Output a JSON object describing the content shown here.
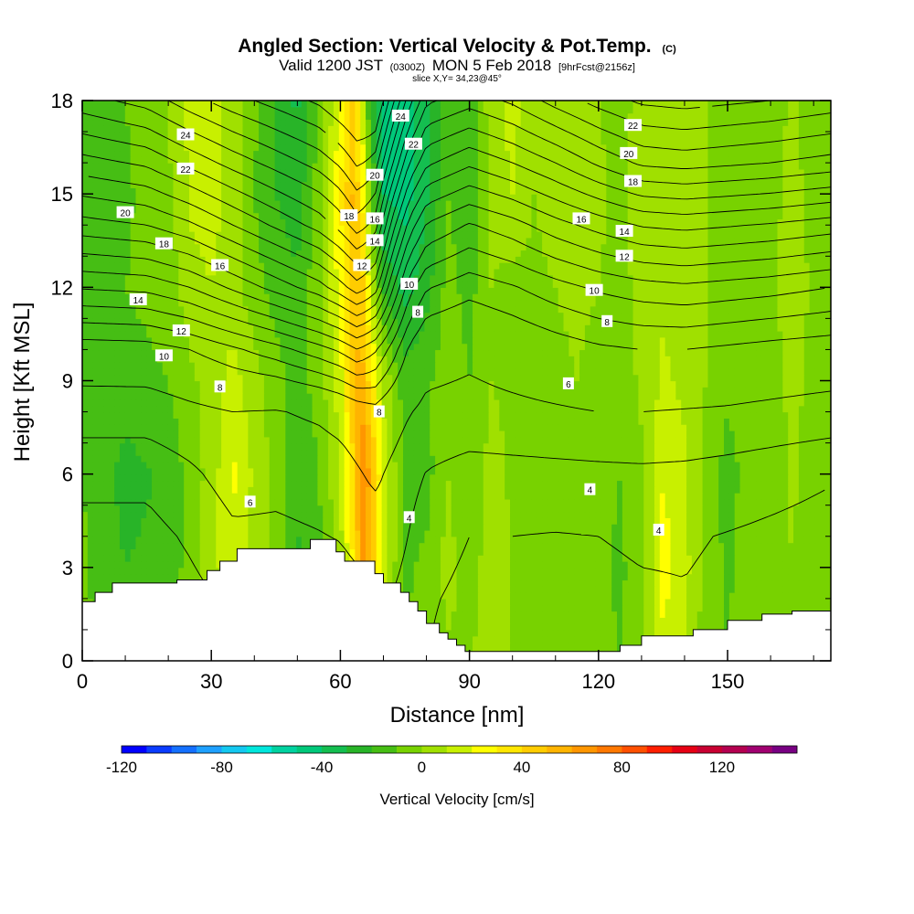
{
  "chart_data": {
    "type": "heatmap",
    "title": "Angled Section: Vertical Velocity & Pot.Temp.",
    "title_unit": "(C)",
    "subtitle_valid": "Valid 1200 JST",
    "subtitle_utc": "(0300Z)",
    "subtitle_date": "MON 5 Feb 2018",
    "subtitle_fcst": "[9hrFcst@2156z]",
    "slice_label": "slice X,Y= 34,23@45°",
    "xlabel": "Distance [nm]",
    "ylabel": "Height [Kft MSL]",
    "xlim": [
      0,
      174
    ],
    "ylim": [
      0,
      18
    ],
    "x_ticks": [
      "0",
      "30",
      "60",
      "90",
      "120",
      "150"
    ],
    "x_tick_values": [
      0,
      30,
      60,
      90,
      120,
      150
    ],
    "y_ticks": [
      "0",
      "3",
      "6",
      "9",
      "12",
      "15",
      "18"
    ],
    "y_tick_values": [
      0,
      3,
      6,
      9,
      12,
      15,
      18
    ],
    "colorbar": {
      "label": "Vertical Velocity [cm/s]",
      "min": -120,
      "max": 150,
      "step": 10,
      "tick_labels": [
        "-120",
        "-80",
        "-40",
        "0",
        "40",
        "80",
        "120"
      ],
      "tick_values": [
        -120,
        -80,
        -40,
        0,
        40,
        80,
        120
      ],
      "colors": [
        "#0000ff",
        "#0a3cff",
        "#1470ff",
        "#1ea0ff",
        "#14c8f0",
        "#00e6dc",
        "#00d2a0",
        "#00c87a",
        "#14be50",
        "#28b428",
        "#46be14",
        "#78d200",
        "#a0e000",
        "#c8f000",
        "#ffff00",
        "#ffe600",
        "#ffcc00",
        "#ffb400",
        "#ff9600",
        "#ff7800",
        "#ff5000",
        "#ff1e00",
        "#e60014",
        "#c80032",
        "#b40050",
        "#a00070",
        "#780082"
      ]
    },
    "velocity_field": {
      "x": [
        0,
        10,
        20,
        25,
        30,
        35,
        40,
        45,
        50,
        55,
        60,
        63,
        65,
        67,
        70,
        75,
        80,
        85,
        90,
        95,
        100,
        105,
        110,
        115,
        120,
        125,
        130,
        135,
        140,
        145,
        150,
        155,
        160,
        165,
        170,
        174
      ],
      "y": [
        0,
        3,
        6,
        9,
        12,
        15,
        18
      ],
      "values": [
        [
          -8,
          -16,
          -14,
          -6,
          4,
          12,
          4,
          -4,
          -10,
          -6,
          4,
          18,
          36,
          22,
          8,
          -8,
          -6,
          -2,
          0,
          4,
          0,
          -4,
          -4,
          0,
          -6,
          -10,
          -4,
          18,
          10,
          -6,
          -10,
          -4,
          -6,
          -2,
          -4,
          -6
        ],
        [
          -8,
          -20,
          -16,
          -6,
          6,
          18,
          6,
          -4,
          -22,
          -14,
          6,
          30,
          62,
          48,
          14,
          -12,
          -8,
          4,
          -6,
          6,
          0,
          -4,
          -2,
          0,
          -8,
          -12,
          -4,
          24,
          14,
          -4,
          -12,
          -4,
          -8,
          0,
          -6,
          -8
        ],
        [
          -10,
          -24,
          -18,
          -6,
          4,
          22,
          8,
          -4,
          -18,
          -10,
          10,
          40,
          72,
          58,
          16,
          -12,
          -14,
          0,
          -8,
          4,
          -2,
          -6,
          -4,
          0,
          -6,
          -10,
          -2,
          20,
          12,
          -4,
          -14,
          -6,
          -10,
          2,
          -6,
          -8
        ],
        [
          -10,
          -14,
          -10,
          -2,
          4,
          14,
          4,
          -6,
          -14,
          -6,
          16,
          48,
          54,
          36,
          8,
          -16,
          -12,
          -4,
          -10,
          0,
          -2,
          -4,
          -4,
          0,
          -6,
          -6,
          2,
          12,
          8,
          0,
          -8,
          -6,
          -6,
          4,
          -4,
          -6
        ],
        [
          -10,
          -10,
          -6,
          6,
          10,
          4,
          -6,
          -14,
          -18,
          -2,
          24,
          50,
          46,
          14,
          -22,
          -34,
          -24,
          -6,
          -14,
          0,
          -4,
          -2,
          0,
          4,
          0,
          -4,
          4,
          8,
          4,
          0,
          -4,
          -6,
          -2,
          6,
          -2,
          -6
        ],
        [
          -12,
          -12,
          -2,
          12,
          14,
          6,
          -10,
          -20,
          -26,
          -4,
          30,
          52,
          32,
          -6,
          -40,
          -44,
          -32,
          -10,
          -18,
          2,
          10,
          0,
          4,
          6,
          2,
          -2,
          4,
          6,
          2,
          0,
          -4,
          -8,
          -4,
          4,
          -4,
          -8
        ],
        [
          -10,
          -10,
          0,
          12,
          12,
          8,
          -8,
          -22,
          -32,
          -10,
          22,
          42,
          18,
          -24,
          -48,
          -44,
          -34,
          -14,
          -18,
          6,
          14,
          2,
          2,
          4,
          0,
          -4,
          4,
          2,
          0,
          0,
          -4,
          -8,
          -6,
          2,
          -6,
          -8
        ]
      ]
    },
    "terrain_profile": {
      "x": [
        0,
        3,
        3,
        7,
        7,
        22,
        22,
        29,
        29,
        32,
        32,
        36,
        36,
        53,
        53,
        59,
        59,
        61,
        61,
        68,
        68,
        70,
        70,
        74,
        74,
        76,
        76,
        78,
        78,
        80,
        80,
        83,
        83,
        85,
        85,
        87,
        87,
        89,
        89,
        91,
        91,
        125,
        125,
        130,
        130,
        142,
        142,
        150,
        150,
        158,
        158,
        165,
        165,
        174
      ],
      "y": [
        1.9,
        1.9,
        2.2,
        2.2,
        2.5,
        2.5,
        2.6,
        2.6,
        2.9,
        2.9,
        3.2,
        3.2,
        3.6,
        3.6,
        3.9,
        3.9,
        3.5,
        3.5,
        3.2,
        3.2,
        2.8,
        2.8,
        2.5,
        2.5,
        2.2,
        2.2,
        1.9,
        1.9,
        1.6,
        1.6,
        1.2,
        1.2,
        0.9,
        0.9,
        0.7,
        0.7,
        0.5,
        0.5,
        0.3,
        0.3,
        0.3,
        0.3,
        0.5,
        0.5,
        0.8,
        0.8,
        1.0,
        1.0,
        1.3,
        1.3,
        1.5,
        1.5,
        1.6,
        1.6
      ]
    },
    "theta_field": {
      "x": [
        0,
        15,
        25,
        35,
        45,
        55,
        60,
        64,
        68,
        72,
        76,
        80,
        90,
        100,
        110,
        120,
        130,
        140,
        150,
        160,
        174
      ],
      "y": [
        0,
        2,
        4,
        6,
        8,
        10,
        12,
        14,
        16,
        18
      ],
      "values": [
        [
          2.0,
          2.0,
          2.6,
          3.6,
          3.9,
          4.2,
          4.3,
          4.5,
          4.6,
          4.7,
          4.4,
          4.0,
          3.2,
          3.0,
          3.0,
          3.2,
          3.4,
          3.5,
          3.3,
          3.0,
          2.8
        ],
        [
          2.6,
          2.6,
          3.4,
          4.4,
          4.6,
          4.9,
          5.0,
          5.3,
          5.6,
          5.9,
          5.0,
          4.2,
          3.6,
          3.5,
          3.4,
          3.6,
          3.8,
          3.9,
          3.6,
          3.3,
          3.0
        ],
        [
          3.3,
          3.3,
          4.3,
          5.6,
          5.6,
          5.9,
          6.1,
          6.6,
          7.0,
          7.2,
          5.9,
          4.7,
          4.0,
          4.0,
          3.9,
          4.0,
          4.2,
          4.2,
          3.9,
          3.6,
          3.2
        ],
        [
          4.6,
          4.6,
          5.6,
          6.9,
          6.6,
          6.9,
          7.2,
          7.8,
          8.4,
          7.6,
          6.8,
          5.9,
          5.2,
          5.3,
          5.4,
          5.5,
          5.6,
          5.5,
          5.2,
          4.8,
          4.2
        ],
        [
          7.0,
          7.0,
          7.6,
          8.0,
          7.9,
          8.3,
          8.7,
          9.2,
          9.6,
          8.9,
          8.1,
          7.6,
          7.4,
          7.6,
          7.8,
          8.0,
          8.0,
          7.9,
          7.8,
          7.6,
          7.3
        ],
        [
          9.4,
          9.5,
          10.0,
          10.8,
          11.6,
          12.6,
          13.2,
          14.0,
          13.2,
          11.6,
          9.8,
          8.8,
          8.4,
          8.9,
          9.4,
          9.8,
          10.0,
          10.0,
          9.8,
          9.6,
          9.4
        ],
        [
          13.1,
          13.3,
          14.0,
          15.2,
          16.4,
          17.6,
          18.6,
          19.6,
          18.6,
          15.2,
          12.4,
          11.1,
          10.4,
          10.9,
          11.6,
          12.2,
          12.6,
          12.8,
          12.6,
          12.4,
          12.0
        ],
        [
          16.6,
          17.0,
          17.8,
          19.0,
          20.2,
          21.4,
          22.4,
          23.6,
          22.6,
          18.6,
          15.6,
          13.9,
          12.9,
          13.6,
          14.6,
          15.4,
          16.1,
          16.3,
          16.1,
          15.9,
          15.5
        ],
        [
          19.6,
          20.2,
          21.3,
          22.4,
          23.4,
          24.4,
          25.2,
          26.2,
          25.6,
          22.2,
          19.0,
          17.2,
          16.2,
          17.0,
          18.0,
          19.2,
          20.2,
          20.4,
          20.2,
          20.0,
          19.6
        ],
        [
          22.6,
          23.4,
          24.6,
          25.6,
          26.4,
          27.2,
          28.0,
          28.6,
          28.6,
          25.4,
          22.4,
          20.2,
          19.4,
          20.2,
          21.4,
          22.4,
          23.2,
          23.4,
          23.2,
          23.0,
          22.6
        ]
      ],
      "levels": [
        4,
        6,
        8,
        10,
        11,
        12,
        13,
        14,
        15,
        16,
        17,
        18,
        19,
        20,
        21,
        22,
        23,
        24,
        25,
        26,
        27
      ]
    },
    "contour_labels": [
      {
        "text": "24",
        "x": 24,
        "y": 16.9
      },
      {
        "text": "22",
        "x": 24,
        "y": 15.8
      },
      {
        "text": "20",
        "x": 10,
        "y": 14.4
      },
      {
        "text": "18",
        "x": 19,
        "y": 13.4
      },
      {
        "text": "16",
        "x": 32,
        "y": 12.7
      },
      {
        "text": "14",
        "x": 13,
        "y": 11.6
      },
      {
        "text": "12",
        "x": 23,
        "y": 10.6
      },
      {
        "text": "10",
        "x": 19,
        "y": 9.8
      },
      {
        "text": "8",
        "x": 32,
        "y": 8.8
      },
      {
        "text": "6",
        "x": 39,
        "y": 5.1
      },
      {
        "text": "24",
        "x": 74,
        "y": 17.5
      },
      {
        "text": "22",
        "x": 77,
        "y": 16.6
      },
      {
        "text": "20",
        "x": 68,
        "y": 15.6
      },
      {
        "text": "18",
        "x": 62,
        "y": 14.3
      },
      {
        "text": "16",
        "x": 68,
        "y": 14.2
      },
      {
        "text": "14",
        "x": 68,
        "y": 13.5
      },
      {
        "text": "12",
        "x": 65,
        "y": 12.7
      },
      {
        "text": "10",
        "x": 76,
        "y": 12.1
      },
      {
        "text": "8",
        "x": 78,
        "y": 11.2
      },
      {
        "text": "8",
        "x": 69,
        "y": 8.0
      },
      {
        "text": "4",
        "x": 76,
        "y": 4.6
      },
      {
        "text": "22",
        "x": 128,
        "y": 17.2
      },
      {
        "text": "20",
        "x": 127,
        "y": 16.3
      },
      {
        "text": "18",
        "x": 128,
        "y": 15.4
      },
      {
        "text": "16",
        "x": 116,
        "y": 14.2
      },
      {
        "text": "14",
        "x": 126,
        "y": 13.8
      },
      {
        "text": "12",
        "x": 126,
        "y": 13.0
      },
      {
        "text": "10",
        "x": 119,
        "y": 11.9
      },
      {
        "text": "8",
        "x": 122,
        "y": 10.9
      },
      {
        "text": "6",
        "x": 113,
        "y": 8.9
      },
      {
        "text": "4",
        "x": 118,
        "y": 5.5
      },
      {
        "text": "4",
        "x": 134,
        "y": 4.2
      }
    ]
  }
}
